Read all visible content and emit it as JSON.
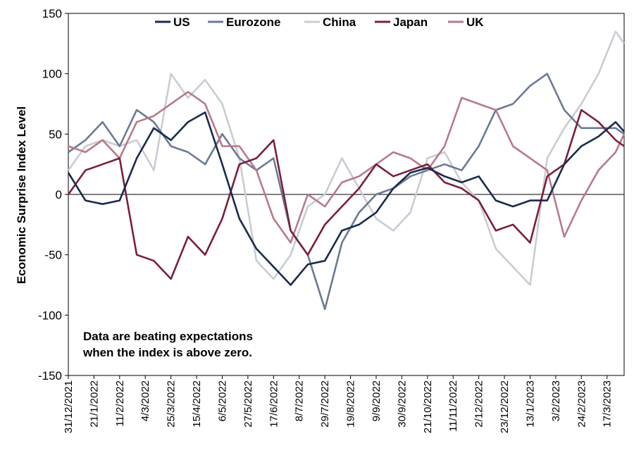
{
  "chart_data": {
    "type": "line",
    "ylabel": "Economic Surprise Index Level",
    "xlabel": "",
    "ylim": [
      -150,
      150
    ],
    "yticks": [
      150,
      100,
      50,
      0,
      -50,
      -100,
      -150
    ],
    "x_start": "31/12/2021",
    "x_end": "31/3/2023",
    "x_ticks": [
      "31/12/2021",
      "21/1/2022",
      "11/2/2022",
      "4/3/2022",
      "25/3/2022",
      "15/4/2022",
      "6/5/2022",
      "27/5/2022",
      "17/6/2022",
      "8/7/2022",
      "29/7/2022",
      "19/8/2022",
      "9/9/2022",
      "30/9/2022",
      "21/10/2022",
      "11/11/2022",
      "2/12/2022",
      "23/12/2022",
      "13/1/2023",
      "3/2/2023",
      "24/2/2023",
      "17/3/2023"
    ],
    "legend_position": "top",
    "annotation": "Data are beating expectations when the index is above zero.",
    "series": [
      {
        "name": "US",
        "color": "#1a2b4c",
        "x": [
          "31/12/2021",
          "14/1/2022",
          "28/1/2022",
          "11/2/2022",
          "25/2/2022",
          "11/3/2022",
          "25/3/2022",
          "8/4/2022",
          "22/4/2022",
          "6/5/2022",
          "20/5/2022",
          "3/6/2022",
          "17/6/2022",
          "1/7/2022",
          "15/7/2022",
          "29/7/2022",
          "12/8/2022",
          "26/8/2022",
          "9/9/2022",
          "23/9/2022",
          "7/10/2022",
          "21/10/2022",
          "4/11/2022",
          "18/11/2022",
          "2/12/2022",
          "16/12/2022",
          "30/12/2022",
          "13/1/2023",
          "27/1/2023",
          "10/2/2023",
          "24/2/2023",
          "10/3/2023",
          "24/3/2023",
          "31/3/2023"
        ],
        "values": [
          18,
          -5,
          -8,
          -5,
          30,
          55,
          45,
          60,
          68,
          25,
          -20,
          -45,
          -60,
          -75,
          -58,
          -55,
          -30,
          -25,
          -15,
          5,
          18,
          22,
          15,
          10,
          15,
          -5,
          -10,
          -5,
          -5,
          25,
          40,
          48,
          60,
          52
        ]
      },
      {
        "name": "Eurozone",
        "color": "#6b7a94",
        "x": [
          "31/12/2021",
          "14/1/2022",
          "28/1/2022",
          "11/2/2022",
          "25/2/2022",
          "11/3/2022",
          "25/3/2022",
          "8/4/2022",
          "22/4/2022",
          "6/5/2022",
          "20/5/2022",
          "3/6/2022",
          "17/6/2022",
          "1/7/2022",
          "15/7/2022",
          "29/7/2022",
          "12/8/2022",
          "26/8/2022",
          "9/9/2022",
          "23/9/2022",
          "7/10/2022",
          "21/10/2022",
          "4/11/2022",
          "18/11/2022",
          "2/12/2022",
          "16/12/2022",
          "30/12/2022",
          "13/1/2023",
          "27/1/2023",
          "10/2/2023",
          "24/2/2023",
          "10/3/2023",
          "24/3/2023",
          "31/3/2023"
        ],
        "values": [
          35,
          45,
          60,
          40,
          70,
          60,
          40,
          35,
          25,
          50,
          30,
          20,
          30,
          -30,
          -50,
          -95,
          -40,
          -15,
          0,
          5,
          15,
          20,
          25,
          20,
          40,
          70,
          75,
          90,
          100,
          70,
          55,
          55,
          55,
          50
        ]
      },
      {
        "name": "China",
        "color": "#c9ccd4",
        "x": [
          "31/12/2021",
          "14/1/2022",
          "28/1/2022",
          "11/2/2022",
          "25/2/2022",
          "11/3/2022",
          "25/3/2022",
          "8/4/2022",
          "22/4/2022",
          "6/5/2022",
          "20/5/2022",
          "3/6/2022",
          "17/6/2022",
          "1/7/2022",
          "15/7/2022",
          "29/7/2022",
          "12/8/2022",
          "26/8/2022",
          "9/9/2022",
          "23/9/2022",
          "7/10/2022",
          "21/10/2022",
          "4/11/2022",
          "18/11/2022",
          "2/12/2022",
          "16/12/2022",
          "30/12/2022",
          "13/1/2023",
          "27/1/2023",
          "10/2/2023",
          "24/2/2023",
          "10/3/2023",
          "24/3/2023",
          "31/3/2023"
        ],
        "values": [
          20,
          40,
          45,
          40,
          45,
          20,
          100,
          80,
          95,
          75,
          30,
          -55,
          -70,
          -50,
          -10,
          0,
          30,
          5,
          -20,
          -30,
          -15,
          30,
          35,
          10,
          -5,
          -45,
          -60,
          -75,
          30,
          55,
          75,
          100,
          135,
          125
        ]
      },
      {
        "name": "Japan",
        "color": "#7a1f3d",
        "x": [
          "31/12/2021",
          "14/1/2022",
          "28/1/2022",
          "11/2/2022",
          "25/2/2022",
          "11/3/2022",
          "25/3/2022",
          "8/4/2022",
          "22/4/2022",
          "6/5/2022",
          "20/5/2022",
          "3/6/2022",
          "17/6/2022",
          "1/7/2022",
          "15/7/2022",
          "29/7/2022",
          "12/8/2022",
          "26/8/2022",
          "9/9/2022",
          "23/9/2022",
          "7/10/2022",
          "21/10/2022",
          "4/11/2022",
          "18/11/2022",
          "2/12/2022",
          "16/12/2022",
          "30/12/2022",
          "13/1/2023",
          "27/1/2023",
          "10/2/2023",
          "24/2/2023",
          "10/3/2023",
          "24/3/2023",
          "31/3/2023"
        ],
        "values": [
          0,
          20,
          25,
          30,
          -50,
          -55,
          -70,
          -35,
          -50,
          -20,
          25,
          30,
          45,
          -30,
          -50,
          -25,
          -10,
          5,
          25,
          15,
          20,
          25,
          10,
          5,
          -5,
          -30,
          -25,
          -40,
          15,
          25,
          70,
          60,
          45,
          40
        ]
      },
      {
        "name": "UK",
        "color": "#b87a89",
        "x": [
          "31/12/2021",
          "14/1/2022",
          "28/1/2022",
          "11/2/2022",
          "25/2/2022",
          "11/3/2022",
          "25/3/2022",
          "8/4/2022",
          "22/4/2022",
          "6/5/2022",
          "20/5/2022",
          "3/6/2022",
          "17/6/2022",
          "1/7/2022",
          "15/7/2022",
          "29/7/2022",
          "12/8/2022",
          "26/8/2022",
          "9/9/2022",
          "23/9/2022",
          "7/10/2022",
          "21/10/2022",
          "4/11/2022",
          "18/11/2022",
          "2/12/2022",
          "16/12/2022",
          "30/12/2022",
          "13/1/2023",
          "27/1/2023",
          "10/2/2023",
          "24/2/2023",
          "10/3/2023",
          "24/3/2023",
          "31/3/2023"
        ],
        "values": [
          40,
          35,
          45,
          30,
          60,
          65,
          75,
          85,
          75,
          40,
          40,
          20,
          -20,
          -40,
          0,
          -10,
          10,
          15,
          25,
          35,
          30,
          20,
          40,
          80,
          75,
          70,
          40,
          30,
          20,
          -35,
          -5,
          20,
          35,
          50
        ]
      }
    ]
  }
}
